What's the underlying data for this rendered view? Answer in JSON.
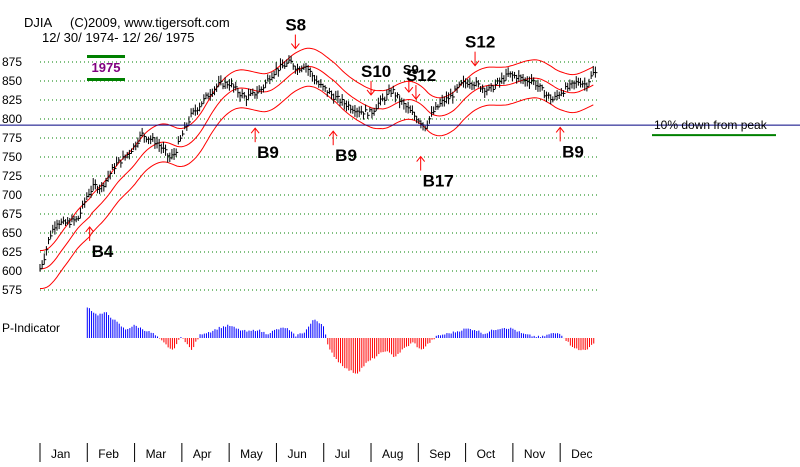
{
  "header": {
    "index": "DJIA",
    "copyright": "(C)2009, www.tigersoft.com",
    "date_range": "12/ 30/ 1974- 12/ 26/ 1975"
  },
  "badge": {
    "year": "1975",
    "text_color": "#800080",
    "bar_color": "#008000"
  },
  "colors": {
    "price": "#000000",
    "bands": "#ff0000",
    "grid": "#008000",
    "indicator_positive": "#0000ff",
    "indicator_negative": "#ff0000",
    "annotation_line": "#000080",
    "annotation_underline": "#008000"
  },
  "indicator_label": "P-Indicator",
  "annotation": {
    "text": "10% down from peak",
    "level": 792
  },
  "chart_data": {
    "type": "line",
    "title": "",
    "xlabel": "",
    "ylabel": "",
    "ylim": [
      575,
      875
    ],
    "yticks": [
      600,
      625,
      650,
      675,
      700,
      725,
      750,
      775,
      800,
      825,
      850,
      875,
      575
    ],
    "ytick_labels": [
      "600",
      "625",
      "650",
      "675",
      "700",
      "725",
      "750",
      "775",
      "800",
      "825",
      "850",
      "875",
      "575"
    ],
    "grid": true,
    "xlim": [
      1,
      12.8
    ],
    "months": [
      "Jan",
      "Feb",
      "Mar",
      "Apr",
      "May",
      "Jun",
      "Jul",
      "Aug",
      "Sep",
      "Oct",
      "Nov",
      "Dec"
    ],
    "price_points": [
      [
        1.0,
        603
      ],
      [
        1.1,
        620
      ],
      [
        1.2,
        645
      ],
      [
        1.35,
        665
      ],
      [
        1.5,
        662
      ],
      [
        1.65,
        665
      ],
      [
        1.8,
        668
      ],
      [
        2.0,
        700
      ],
      [
        2.15,
        712
      ],
      [
        2.3,
        710
      ],
      [
        2.45,
        725
      ],
      [
        2.6,
        740
      ],
      [
        2.8,
        750
      ],
      [
        3.0,
        765
      ],
      [
        3.15,
        780
      ],
      [
        3.3,
        775
      ],
      [
        3.45,
        770
      ],
      [
        3.6,
        760
      ],
      [
        3.75,
        748
      ],
      [
        3.85,
        755
      ],
      [
        4.0,
        778
      ],
      [
        4.2,
        805
      ],
      [
        4.4,
        820
      ],
      [
        4.6,
        835
      ],
      [
        4.8,
        846
      ],
      [
        5.0,
        847
      ],
      [
        5.2,
        835
      ],
      [
        5.35,
        828
      ],
      [
        5.5,
        832
      ],
      [
        5.7,
        840
      ],
      [
        5.85,
        855
      ],
      [
        6.0,
        865
      ],
      [
        6.15,
        870
      ],
      [
        6.3,
        875
      ],
      [
        6.45,
        866
      ],
      [
        6.6,
        872
      ],
      [
        6.75,
        858
      ],
      [
        6.9,
        845
      ],
      [
        7.05,
        838
      ],
      [
        7.2,
        830
      ],
      [
        7.4,
        822
      ],
      [
        7.6,
        815
      ],
      [
        7.8,
        810
      ],
      [
        8.0,
        808
      ],
      [
        8.15,
        820
      ],
      [
        8.3,
        828
      ],
      [
        8.45,
        838
      ],
      [
        8.6,
        825
      ],
      [
        8.75,
        815
      ],
      [
        8.9,
        805
      ],
      [
        9.0,
        800
      ],
      [
        9.15,
        790
      ],
      [
        9.3,
        808
      ],
      [
        9.5,
        822
      ],
      [
        9.7,
        830
      ],
      [
        9.9,
        845
      ],
      [
        10.1,
        850
      ],
      [
        10.3,
        843
      ],
      [
        10.5,
        838
      ],
      [
        10.7,
        848
      ],
      [
        10.9,
        858
      ],
      [
        11.1,
        856
      ],
      [
        11.25,
        850
      ],
      [
        11.4,
        852
      ],
      [
        11.55,
        842
      ],
      [
        11.7,
        832
      ],
      [
        11.85,
        825
      ],
      [
        12.0,
        835
      ],
      [
        12.2,
        842
      ],
      [
        12.4,
        850
      ],
      [
        12.55,
        845
      ],
      [
        12.7,
        860
      ]
    ],
    "signals": [
      {
        "label": "S8",
        "type": "sell",
        "x": 6.4,
        "size": "large"
      },
      {
        "label": "S9",
        "type": "sell",
        "x": 8.8,
        "size": "small"
      },
      {
        "label": "S10",
        "type": "sell",
        "x": 8.0,
        "size": "large"
      },
      {
        "label": "S12",
        "type": "sell",
        "x": 8.95,
        "size": "large"
      },
      {
        "label": "S12",
        "type": "sell",
        "x": 10.2,
        "size": "large"
      },
      {
        "label": "B4",
        "type": "buy",
        "x": 2.05,
        "size": "large"
      },
      {
        "label": "B9",
        "type": "buy",
        "x": 5.55,
        "size": "large"
      },
      {
        "label": "B9",
        "type": "buy",
        "x": 7.2,
        "size": "large"
      },
      {
        "label": "B17",
        "type": "buy",
        "x": 9.05,
        "size": "large"
      },
      {
        "label": "B9",
        "type": "buy",
        "x": 12.0,
        "size": "large"
      }
    ],
    "indicator": {
      "name": "P-Indicator",
      "points": [
        [
          2.0,
          0.75
        ],
        [
          2.2,
          0.55
        ],
        [
          2.4,
          0.6
        ],
        [
          2.6,
          0.4
        ],
        [
          2.8,
          0.2
        ],
        [
          3.0,
          0.3
        ],
        [
          3.2,
          0.2
        ],
        [
          3.4,
          0.1
        ],
        [
          3.6,
          -0.1
        ],
        [
          3.8,
          -0.3
        ],
        [
          4.0,
          0.05
        ],
        [
          4.2,
          -0.3
        ],
        [
          4.4,
          0.1
        ],
        [
          4.6,
          0.15
        ],
        [
          4.8,
          0.25
        ],
        [
          5.0,
          0.3
        ],
        [
          5.2,
          0.2
        ],
        [
          5.4,
          0.15
        ],
        [
          5.6,
          0.2
        ],
        [
          5.8,
          0.1
        ],
        [
          6.0,
          0.2
        ],
        [
          6.2,
          0.25
        ],
        [
          6.4,
          0.05
        ],
        [
          6.6,
          0.15
        ],
        [
          6.8,
          0.45
        ],
        [
          7.0,
          0.3
        ],
        [
          7.1,
          -0.25
        ],
        [
          7.3,
          -0.55
        ],
        [
          7.5,
          -0.75
        ],
        [
          7.7,
          -0.85
        ],
        [
          7.9,
          -0.6
        ],
        [
          8.1,
          -0.45
        ],
        [
          8.3,
          -0.3
        ],
        [
          8.5,
          -0.45
        ],
        [
          8.7,
          -0.25
        ],
        [
          8.9,
          -0.1
        ],
        [
          9.05,
          -0.3
        ],
        [
          9.2,
          -0.15
        ],
        [
          9.4,
          0.05
        ],
        [
          9.6,
          0.1
        ],
        [
          9.8,
          0.15
        ],
        [
          10.0,
          0.22
        ],
        [
          10.2,
          0.2
        ],
        [
          10.4,
          0.1
        ],
        [
          10.6,
          0.2
        ],
        [
          10.8,
          0.25
        ],
        [
          11.0,
          0.22
        ],
        [
          11.2,
          0.1
        ],
        [
          11.4,
          0.05
        ],
        [
          11.6,
          0.02
        ],
        [
          11.8,
          0.1
        ],
        [
          12.0,
          0.12
        ],
        [
          12.2,
          -0.15
        ],
        [
          12.4,
          -0.3
        ],
        [
          12.6,
          -0.25
        ],
        [
          12.75,
          -0.1
        ]
      ]
    }
  }
}
